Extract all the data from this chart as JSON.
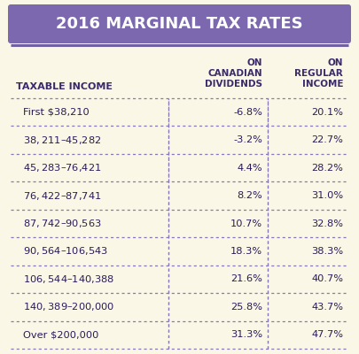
{
  "title": "2016 MARGINAL TAX RATES",
  "title_bg_color": "#7B68AE",
  "title_text_color": "#FFFFFF",
  "bg_color": "#FAF7E6",
  "header_row": [
    "TAXABLE INCOME",
    "ON\nCANADIAN\nDIVIDENDS",
    "ON\nREGULAR\nINCOME"
  ],
  "rows": [
    [
      "First $38,210",
      "-6.8%",
      "20.1%"
    ],
    [
      "$38,211–$45,282",
      "-3.2%",
      "22.7%"
    ],
    [
      "$45,283–$76,421",
      "4.4%",
      "28.2%"
    ],
    [
      "$76,422–$87,741",
      "8.2%",
      "31.0%"
    ],
    [
      "$87,742–$90,563",
      "10.7%",
      "32.8%"
    ],
    [
      "$90,564–$106,543",
      "18.3%",
      "38.3%"
    ],
    [
      "$106,544–$140,388",
      "21.6%",
      "40.7%"
    ],
    [
      "$140,389–$200,000",
      "25.8%",
      "43.7%"
    ],
    [
      "Over $200,000",
      "31.3%",
      "47.7%"
    ]
  ],
  "purple_line_color": "#7060A0",
  "divider_color": "#8878B8",
  "header_color": "#3A2A6A",
  "data_color": "#2A1A5A",
  "fig_w": 4.05,
  "fig_h": 4.0,
  "dpi": 100
}
